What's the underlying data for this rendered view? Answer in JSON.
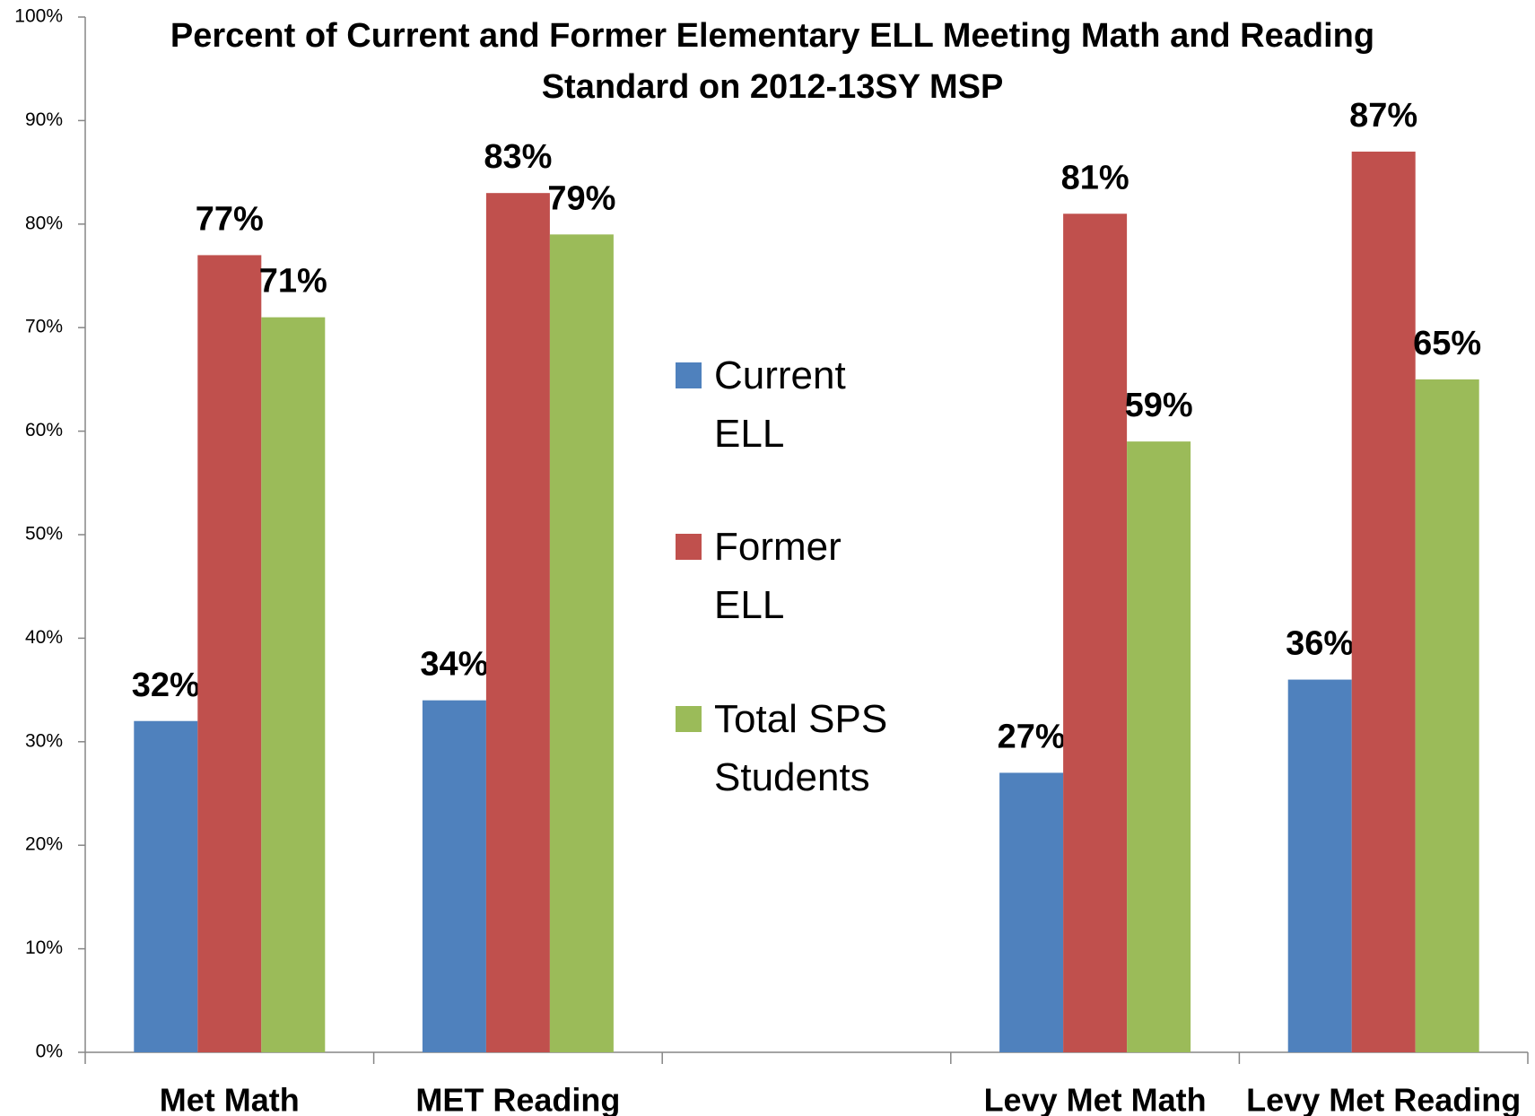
{
  "chart_data": {
    "type": "bar",
    "title": "Percent of Current and Former Elementary ELL Meeting Math and Reading Standard on 2012-13SY MSP",
    "categories": [
      "Met Math",
      "MET Reading",
      null,
      "Levy Met Math",
      "Levy Met Reading"
    ],
    "series": [
      {
        "name": "Current ELL",
        "color": "#4f81bd",
        "values": [
          32,
          34,
          null,
          27,
          36
        ],
        "value_labels": [
          "32%",
          "34%",
          null,
          "27%",
          "36%"
        ]
      },
      {
        "name": "Former ELL",
        "color": "#c0504d",
        "values": [
          77,
          83,
          null,
          81,
          87
        ],
        "value_labels": [
          "77%",
          "83%",
          null,
          "81%",
          "87%"
        ]
      },
      {
        "name": "Total SPS Students",
        "color": "#9bbb59",
        "values": [
          71,
          79,
          null,
          59,
          65
        ],
        "value_labels": [
          "71%",
          "79%",
          null,
          "59%",
          "65%"
        ]
      }
    ],
    "ylim": [
      0,
      100
    ],
    "yticks": [
      {
        "value": 0,
        "label": "0%"
      },
      {
        "value": 10,
        "label": "10%"
      },
      {
        "value": 20,
        "label": "20%"
      },
      {
        "value": 30,
        "label": "30%"
      },
      {
        "value": 40,
        "label": "40%"
      },
      {
        "value": 50,
        "label": "50%"
      },
      {
        "value": 60,
        "label": "60%"
      },
      {
        "value": 70,
        "label": "70%"
      },
      {
        "value": 80,
        "label": "80%"
      },
      {
        "value": 90,
        "label": "90%"
      },
      {
        "value": 100,
        "label": "100%"
      }
    ],
    "legend": "center"
  }
}
